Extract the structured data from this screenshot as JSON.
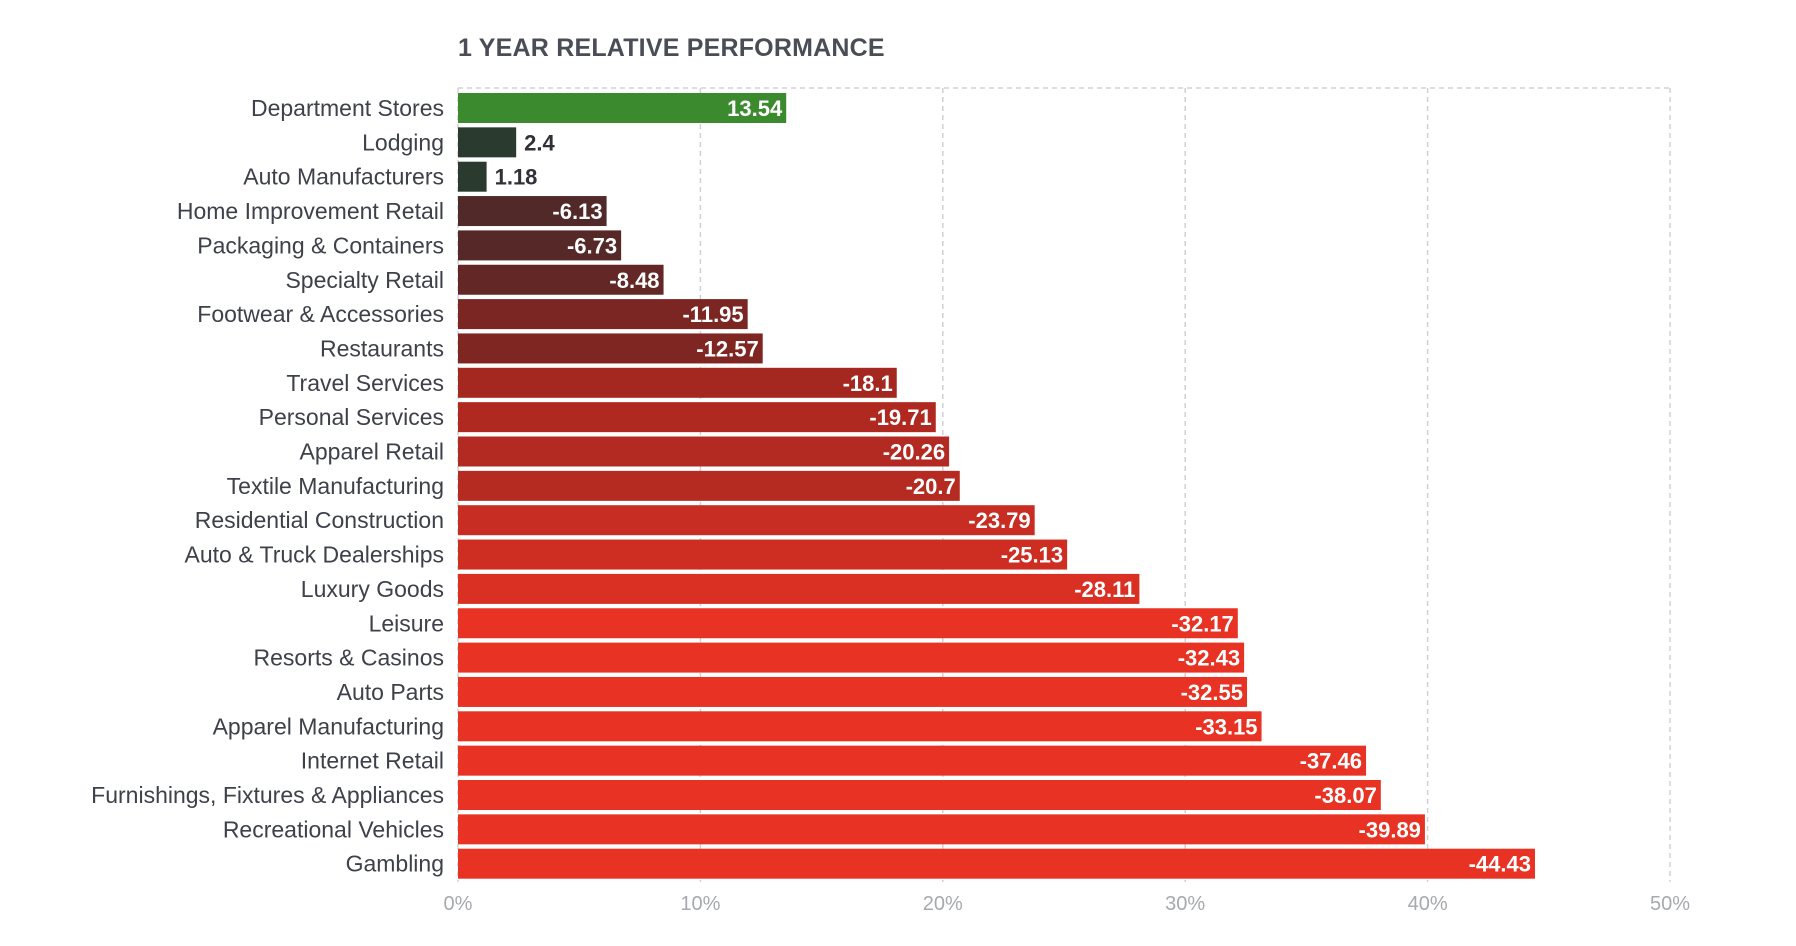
{
  "chart_data": {
    "type": "bar",
    "orientation": "horizontal",
    "title": "1 YEAR RELATIVE PERFORMANCE",
    "xlabel": "",
    "ylabel": "",
    "xlim": [
      0,
      50
    ],
    "x_ticks": [
      "0%",
      "10%",
      "20%",
      "30%",
      "40%",
      "50%"
    ],
    "x_tick_values": [
      0,
      10,
      20,
      30,
      40,
      50
    ],
    "grid": true,
    "bar_length": "absolute value",
    "categories": [
      "Department Stores",
      "Lodging",
      "Auto Manufacturers",
      "Home Improvement Retail",
      "Packaging & Containers",
      "Specialty Retail",
      "Footwear & Accessories",
      "Restaurants",
      "Travel Services",
      "Personal Services",
      "Apparel Retail",
      "Textile Manufacturing",
      "Residential Construction",
      "Auto & Truck Dealerships",
      "Luxury Goods",
      "Leisure",
      "Resorts & Casinos",
      "Auto Parts",
      "Apparel Manufacturing",
      "Internet Retail",
      "Furnishings, Fixtures & Appliances",
      "Recreational Vehicles",
      "Gambling"
    ],
    "values": [
      13.54,
      2.4,
      1.18,
      -6.13,
      -6.73,
      -8.48,
      -11.95,
      -12.57,
      -18.1,
      -19.71,
      -20.26,
      -20.7,
      -23.79,
      -25.13,
      -28.11,
      -32.17,
      -32.43,
      -32.55,
      -33.15,
      -37.46,
      -38.07,
      -39.89,
      -44.43
    ],
    "value_labels": [
      "13.54",
      "2.4",
      "1.18",
      "-6.13",
      "-6.73",
      "-8.48",
      "-11.95",
      "-12.57",
      "-18.1",
      "-19.71",
      "-20.26",
      "-20.7",
      "-23.79",
      "-25.13",
      "-28.11",
      "-32.17",
      "-32.43",
      "-32.55",
      "-33.15",
      "-37.46",
      "-38.07",
      "-39.89",
      "-44.43"
    ],
    "colors": {
      "positive_large": "#3c8a2e",
      "positive_small": "#2b3a2f",
      "negative_scale": [
        "#4a2a2a",
        "#7a2622",
        "#a82820",
        "#cf2e22",
        "#e83324"
      ],
      "grid": "#cfd2d4",
      "label_on_bar": "#ffffff",
      "label_outside": "#2f3136"
    }
  }
}
